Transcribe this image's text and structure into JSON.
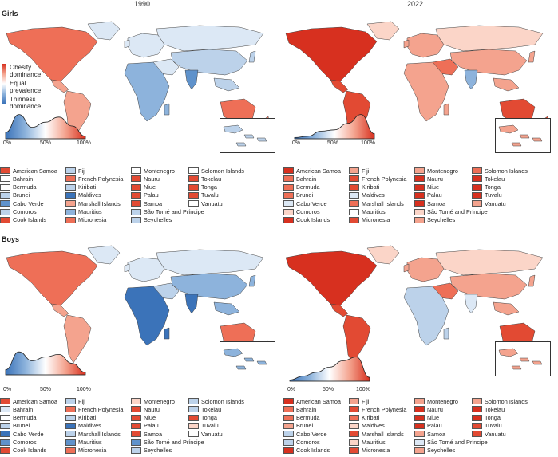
{
  "colors": {
    "c_vdr": "#d7301f",
    "c_dr": "#e24a33",
    "c_mr": "#ee6f57",
    "c_lr": "#f4a38e",
    "c_pr": "#fbd5c8",
    "c_white": "#ffffff",
    "c_pb": "#dce8f5",
    "c_lb": "#bcd2ea",
    "c_mb": "#8db3dc",
    "c_db": "#5f92cb",
    "c_vdb": "#3b73b9",
    "outline": "#444444"
  },
  "section_labels": {
    "girls": "Girls",
    "boys": "Boys"
  },
  "years": {
    "left": "1990",
    "right": "2022"
  },
  "scale_legend": {
    "top": "Obesity dominance",
    "mid": "Equal prevalence",
    "bottom": "Thinness dominance"
  },
  "axis_ticks": [
    "0%",
    "50%",
    "100%"
  ],
  "panels": [
    {
      "id": "girls-1990",
      "tint": "c_lb",
      "na": "c_mr",
      "sa": "c_lr",
      "eu": "c_pb",
      "af": "c_mb",
      "ru": "c_pb",
      "as": "c_lb",
      "me": "c_pb",
      "au": "c_mr",
      "in": "c_db",
      "grn": "c_pb",
      "density": [
        0.25,
        0.95,
        0.45,
        0.65,
        0.85,
        0.5,
        0.1
      ],
      "islands": [
        {
          "name": "American Samoa",
          "color": "c_dr"
        },
        {
          "name": "Bahrain",
          "color": "c_white"
        },
        {
          "name": "Bermuda",
          "color": "c_white"
        },
        {
          "name": "Brunei",
          "color": "c_lb"
        },
        {
          "name": "Cabo Verde",
          "color": "c_db"
        },
        {
          "name": "Comoros",
          "color": "c_lb"
        },
        {
          "name": "Cook Islands",
          "color": "c_dr"
        },
        {
          "name": "Fiji",
          "color": "c_lb"
        },
        {
          "name": "French Polynesia",
          "color": "c_mr"
        },
        {
          "name": "Kiribati",
          "color": "c_lb"
        },
        {
          "name": "Maldives",
          "color": "c_vdb"
        },
        {
          "name": "Marshall Islands",
          "color": "c_lr"
        },
        {
          "name": "Mauritius",
          "color": "c_mb"
        },
        {
          "name": "Micronesia",
          "color": "c_mr"
        },
        {
          "name": "Montenegro",
          "color": "c_white"
        },
        {
          "name": "Nauru",
          "color": "c_dr"
        },
        {
          "name": "Niue",
          "color": "c_dr"
        },
        {
          "name": "Palau",
          "color": "c_dr"
        },
        {
          "name": "Samoa",
          "color": "c_dr"
        },
        {
          "name": "São Tomé and Príncipe",
          "color": "c_lb"
        },
        {
          "name": "Seychelles",
          "color": "c_lb"
        },
        {
          "name": "Solomon Islands",
          "color": "c_white"
        },
        {
          "name": "Tokelau",
          "color": "c_dr"
        },
        {
          "name": "Tonga",
          "color": "c_dr"
        },
        {
          "name": "Tuvalu",
          "color": "c_dr"
        },
        {
          "name": "Vanuatu",
          "color": "c_white"
        }
      ]
    },
    {
      "id": "girls-2022",
      "tint": "c_lr",
      "na": "c_vdr",
      "sa": "c_dr",
      "eu": "c_lr",
      "af": "c_lr",
      "ru": "c_pr",
      "as": "c_lr",
      "me": "c_mr",
      "au": "c_dr",
      "in": "c_mb",
      "grn": "c_pr",
      "density": [
        0.05,
        0.1,
        0.3,
        0.35,
        0.6,
        0.95,
        0.2
      ],
      "islands": [
        {
          "name": "American Samoa",
          "color": "c_vdr"
        },
        {
          "name": "Bahrain",
          "color": "c_mr"
        },
        {
          "name": "Bermuda",
          "color": "c_mr"
        },
        {
          "name": "Brunei",
          "color": "c_mr"
        },
        {
          "name": "Cabo Verde",
          "color": "c_pb"
        },
        {
          "name": "Comoros",
          "color": "c_pr"
        },
        {
          "name": "Cook Islands",
          "color": "c_vdr"
        },
        {
          "name": "Fiji",
          "color": "c_lr"
        },
        {
          "name": "French Polynesia",
          "color": "c_dr"
        },
        {
          "name": "Kiribati",
          "color": "c_dr"
        },
        {
          "name": "Maldives",
          "color": "c_pb"
        },
        {
          "name": "Marshall Islands",
          "color": "c_mr"
        },
        {
          "name": "Mauritius",
          "color": "c_white"
        },
        {
          "name": "Micronesia",
          "color": "c_dr"
        },
        {
          "name": "Montenegro",
          "color": "c_lr"
        },
        {
          "name": "Nauru",
          "color": "c_vdr"
        },
        {
          "name": "Niue",
          "color": "c_vdr"
        },
        {
          "name": "Palau",
          "color": "c_vdr"
        },
        {
          "name": "Samoa",
          "color": "c_vdr"
        },
        {
          "name": "São Tomé and Príncipe",
          "color": "c_pr"
        },
        {
          "name": "Seychelles",
          "color": "c_lr"
        },
        {
          "name": "Solomon Islands",
          "color": "c_mr"
        },
        {
          "name": "Tokelau",
          "color": "c_vdr"
        },
        {
          "name": "Tonga",
          "color": "c_vdr"
        },
        {
          "name": "Tuvalu",
          "color": "c_vdr"
        },
        {
          "name": "Vanuatu",
          "color": "c_lr"
        }
      ]
    },
    {
      "id": "boys-1990",
      "tint": "c_mb",
      "na": "c_mr",
      "sa": "c_lr",
      "eu": "c_pb",
      "af": "c_vdb",
      "ru": "c_pb",
      "as": "c_mb",
      "me": "c_lb",
      "au": "c_mr",
      "in": "c_vdb",
      "grn": "c_pb",
      "density": [
        0.2,
        0.9,
        0.55,
        0.7,
        0.8,
        0.45,
        0.1
      ],
      "islands": [
        {
          "name": "American Samoa",
          "color": "c_dr"
        },
        {
          "name": "Bahrain",
          "color": "c_pb"
        },
        {
          "name": "Bermuda",
          "color": "c_white"
        },
        {
          "name": "Brunei",
          "color": "c_lb"
        },
        {
          "name": "Cabo Verde",
          "color": "c_vdb"
        },
        {
          "name": "Comoros",
          "color": "c_db"
        },
        {
          "name": "Cook Islands",
          "color": "c_dr"
        },
        {
          "name": "Fiji",
          "color": "c_lb"
        },
        {
          "name": "French Polynesia",
          "color": "c_mr"
        },
        {
          "name": "Kiribati",
          "color": "c_lb"
        },
        {
          "name": "Maldives",
          "color": "c_vdb"
        },
        {
          "name": "Marshall Islands",
          "color": "c_lb"
        },
        {
          "name": "Mauritius",
          "color": "c_db"
        },
        {
          "name": "Micronesia",
          "color": "c_mr"
        },
        {
          "name": "Montenegro",
          "color": "c_pr"
        },
        {
          "name": "Nauru",
          "color": "c_dr"
        },
        {
          "name": "Niue",
          "color": "c_dr"
        },
        {
          "name": "Palau",
          "color": "c_dr"
        },
        {
          "name": "Samoa",
          "color": "c_dr"
        },
        {
          "name": "São Tomé and Príncipe",
          "color": "c_db"
        },
        {
          "name": "Seychelles",
          "color": "c_lb"
        },
        {
          "name": "Solomon Islands",
          "color": "c_lb"
        },
        {
          "name": "Tokelau",
          "color": "c_lb"
        },
        {
          "name": "Tonga",
          "color": "c_dr"
        },
        {
          "name": "Tuvalu",
          "color": "c_pr"
        },
        {
          "name": "Vanuatu",
          "color": "c_white"
        }
      ]
    },
    {
      "id": "boys-2022",
      "tint": "c_lr",
      "na": "c_vdr",
      "sa": "c_dr",
      "eu": "c_lr",
      "af": "c_lb",
      "ru": "c_pr",
      "as": "c_lr",
      "me": "c_mr",
      "au": "c_dr",
      "in": "c_pb",
      "grn": "c_pr",
      "density": [
        0.05,
        0.2,
        0.35,
        0.55,
        0.8,
        0.95,
        0.15
      ],
      "islands": [
        {
          "name": "American Samoa",
          "color": "c_vdr"
        },
        {
          "name": "Bahrain",
          "color": "c_mr"
        },
        {
          "name": "Bermuda",
          "color": "c_mr"
        },
        {
          "name": "Brunei",
          "color": "c_lr"
        },
        {
          "name": "Cabo Verde",
          "color": "c_lb"
        },
        {
          "name": "Comoros",
          "color": "c_lb"
        },
        {
          "name": "Cook Islands",
          "color": "c_vdr"
        },
        {
          "name": "Fiji",
          "color": "c_lr"
        },
        {
          "name": "French Polynesia",
          "color": "c_dr"
        },
        {
          "name": "Kiribati",
          "color": "c_mr"
        },
        {
          "name": "Maldives",
          "color": "c_pr"
        },
        {
          "name": "Marshall Islands",
          "color": "c_dr"
        },
        {
          "name": "Mauritius",
          "color": "c_pr"
        },
        {
          "name": "Micronesia",
          "color": "c_dr"
        },
        {
          "name": "Montenegro",
          "color": "c_lr"
        },
        {
          "name": "Nauru",
          "color": "c_vdr"
        },
        {
          "name": "Niue",
          "color": "c_vdr"
        },
        {
          "name": "Palau",
          "color": "c_vdr"
        },
        {
          "name": "Samoa",
          "color": "c_lr"
        },
        {
          "name": "São Tomé and Príncipe",
          "color": "c_pb"
        },
        {
          "name": "Seychelles",
          "color": "c_lr"
        },
        {
          "name": "Solomon Islands",
          "color": "c_lr"
        },
        {
          "name": "Tokelau",
          "color": "c_vdr"
        },
        {
          "name": "Tonga",
          "color": "c_vdr"
        },
        {
          "name": "Tuvalu",
          "color": "c_dr"
        },
        {
          "name": "Vanuatu",
          "color": "c_dr"
        }
      ]
    }
  ]
}
